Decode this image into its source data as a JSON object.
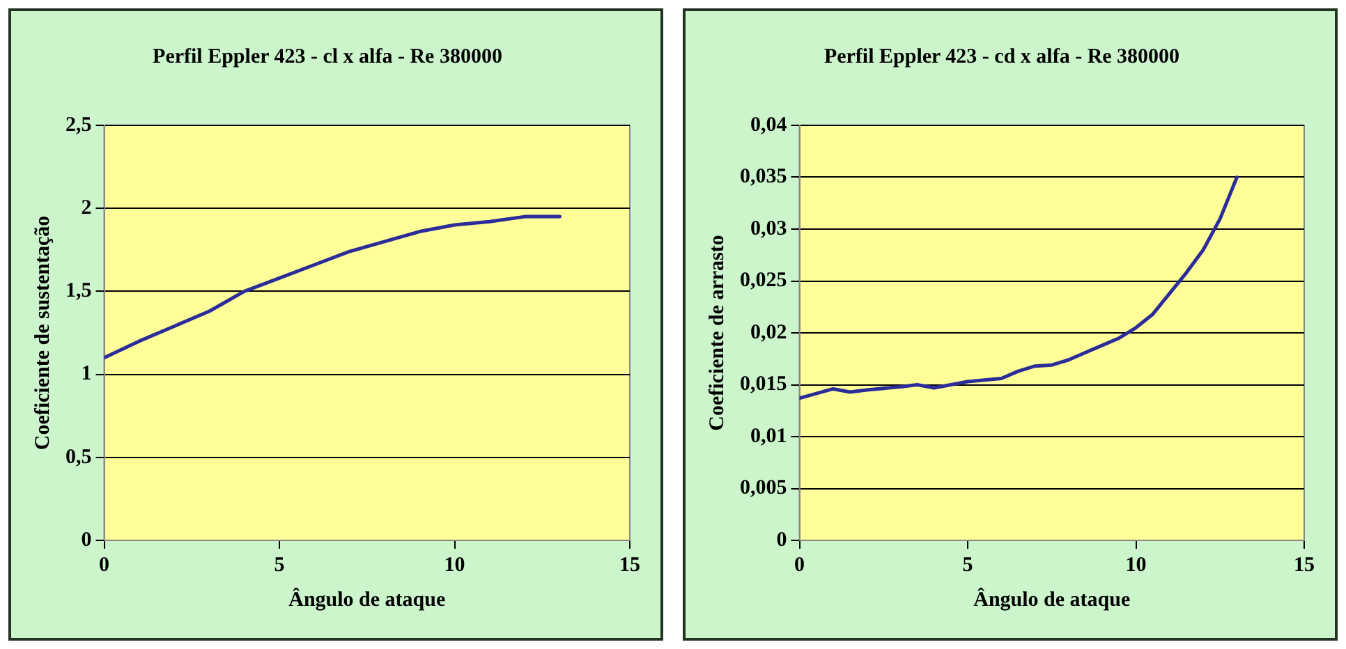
{
  "chart_data": [
    {
      "type": "line",
      "title": "Perfil Eppler 423 - cl x alfa - Re 380000",
      "xlabel": "Ângulo de ataque",
      "ylabel": "Coeficiente de sustentação",
      "x": [
        0,
        1,
        2,
        3,
        4,
        5,
        6,
        7,
        8,
        9,
        10,
        11,
        12,
        13
      ],
      "series": [
        {
          "color": "#2b2b99",
          "values": [
            1.1,
            1.2,
            1.29,
            1.38,
            1.5,
            1.58,
            1.66,
            1.74,
            1.8,
            1.86,
            1.9,
            1.92,
            1.95,
            1.95
          ]
        }
      ],
      "xlim": [
        0,
        15
      ],
      "xticks": [
        0,
        5,
        10,
        15
      ],
      "ylim": [
        0,
        2.5
      ],
      "yticks": [
        0,
        {
          "value": 0.5,
          "label": "0,5"
        },
        1,
        {
          "value": 1.5,
          "label": "1,5"
        },
        2,
        {
          "value": 2.5,
          "label": "2,5"
        }
      ],
      "grid": "y",
      "legend": false,
      "marker": "none",
      "line_style": "solid"
    },
    {
      "type": "line",
      "title": "Perfil Eppler 423 - cd x alfa - Re 380000",
      "xlabel": "Ângulo de ataque",
      "ylabel": "Coeficiente de arrasto",
      "x": [
        0,
        1,
        1.5,
        2,
        3,
        3.5,
        4,
        5,
        6,
        6.5,
        7,
        7.5,
        8,
        8.5,
        9,
        9.5,
        10,
        10.5,
        11,
        11.5,
        12,
        12.5,
        13
      ],
      "series": [
        {
          "color": "#2b2b99",
          "values": [
            0.0137,
            0.0146,
            0.0143,
            0.0145,
            0.0148,
            0.015,
            0.0147,
            0.0153,
            0.0156,
            0.0163,
            0.0168,
            0.0169,
            0.0174,
            0.0181,
            0.0188,
            0.0195,
            0.0205,
            0.0218,
            0.0238,
            0.0258,
            0.028,
            0.031,
            0.035
          ]
        }
      ],
      "xlim": [
        0,
        15
      ],
      "xticks": [
        0,
        5,
        10,
        15
      ],
      "ylim": [
        0,
        0.04
      ],
      "yticks": [
        0,
        {
          "value": 0.005,
          "label": "0,005"
        },
        {
          "value": 0.01,
          "label": "0,01"
        },
        {
          "value": 0.015,
          "label": "0,015"
        },
        {
          "value": 0.02,
          "label": "0,02"
        },
        {
          "value": 0.025,
          "label": "0,025"
        },
        {
          "value": 0.03,
          "label": "0,03"
        },
        {
          "value": 0.035,
          "label": "0,035"
        },
        {
          "value": 0.04,
          "label": "0,04"
        }
      ],
      "grid": "y",
      "legend": false,
      "marker": "none",
      "line_style": "solid"
    }
  ]
}
